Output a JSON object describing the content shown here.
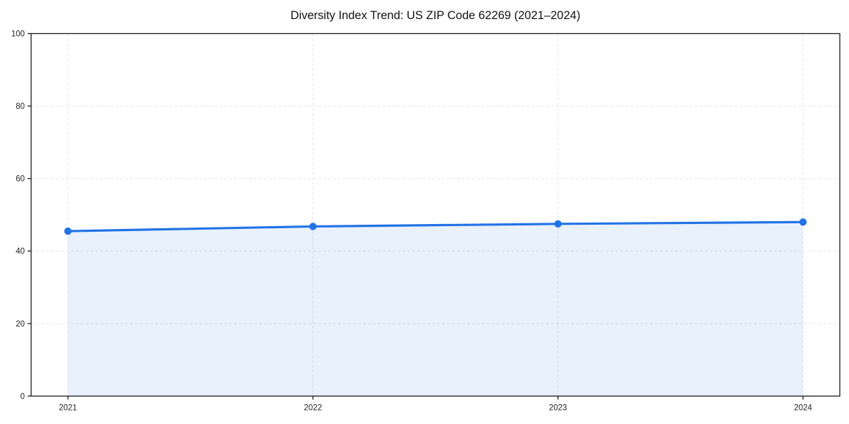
{
  "chart_data": {
    "type": "area",
    "title": "Diversity Index Trend: US ZIP Code 62269 (2021–2024)",
    "categories": [
      "2021",
      "2022",
      "2023",
      "2024"
    ],
    "series": [
      {
        "name": "Diversity Index",
        "values": [
          45.5,
          46.8,
          47.5,
          48.0
        ]
      }
    ],
    "xlabel": "",
    "ylabel": "",
    "ylim": [
      0,
      100
    ],
    "yticks": [
      0,
      20,
      40,
      60,
      80,
      100
    ],
    "grid": "both",
    "grid_style": "dashed",
    "legend": "none",
    "colors": {
      "line": "#2273e6",
      "marker": "#2273e6",
      "fill": "#2273e6",
      "fill_opacity": 0.1,
      "grid": "#e3e3e3",
      "spine": "#1a1a1a",
      "tick_label": "#222222",
      "title": "#111111",
      "background": "#ffffff"
    }
  }
}
